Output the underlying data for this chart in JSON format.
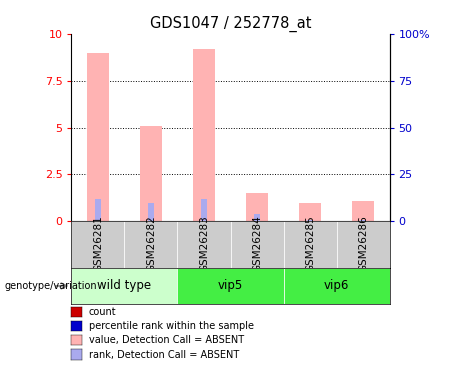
{
  "title": "GDS1047 / 252778_at",
  "samples": [
    "GSM26281",
    "GSM26282",
    "GSM26283",
    "GSM26284",
    "GSM26285",
    "GSM26286"
  ],
  "pink_heights": [
    9.0,
    5.1,
    9.2,
    1.5,
    1.0,
    1.1
  ],
  "blue_heights": [
    1.2,
    1.0,
    1.2,
    0.4,
    0.08,
    0.08
  ],
  "ylim": [
    0,
    10
  ],
  "yticks_left": [
    0,
    2.5,
    5,
    7.5,
    10
  ],
  "yticks_right": [
    0,
    25,
    50,
    75,
    100
  ],
  "ytick_labels_left": [
    "0",
    "2.5",
    "5",
    "7.5",
    "10"
  ],
  "ytick_labels_right": [
    "0",
    "25",
    "50",
    "75",
    "100%"
  ],
  "bar_width": 0.4,
  "pink_color": "#ffb3b3",
  "blue_color": "#aaaaee",
  "left_tick_color": "#ff0000",
  "right_tick_color": "#0000cc",
  "plot_bg_color": "#ffffff",
  "sample_box_color": "#cccccc",
  "group_info": [
    {
      "label": "wild type",
      "start": 0,
      "end": 1,
      "color": "#ccffcc"
    },
    {
      "label": "vip5",
      "start": 2,
      "end": 3,
      "color": "#44ee44"
    },
    {
      "label": "vip6",
      "start": 4,
      "end": 5,
      "color": "#44ee44"
    }
  ],
  "genotype_label": "genotype/variation",
  "legend_items": [
    {
      "color": "#cc0000",
      "label": "count"
    },
    {
      "color": "#0000cc",
      "label": "percentile rank within the sample"
    },
    {
      "color": "#ffb3b3",
      "label": "value, Detection Call = ABSENT"
    },
    {
      "color": "#aaaaee",
      "label": "rank, Detection Call = ABSENT"
    }
  ]
}
